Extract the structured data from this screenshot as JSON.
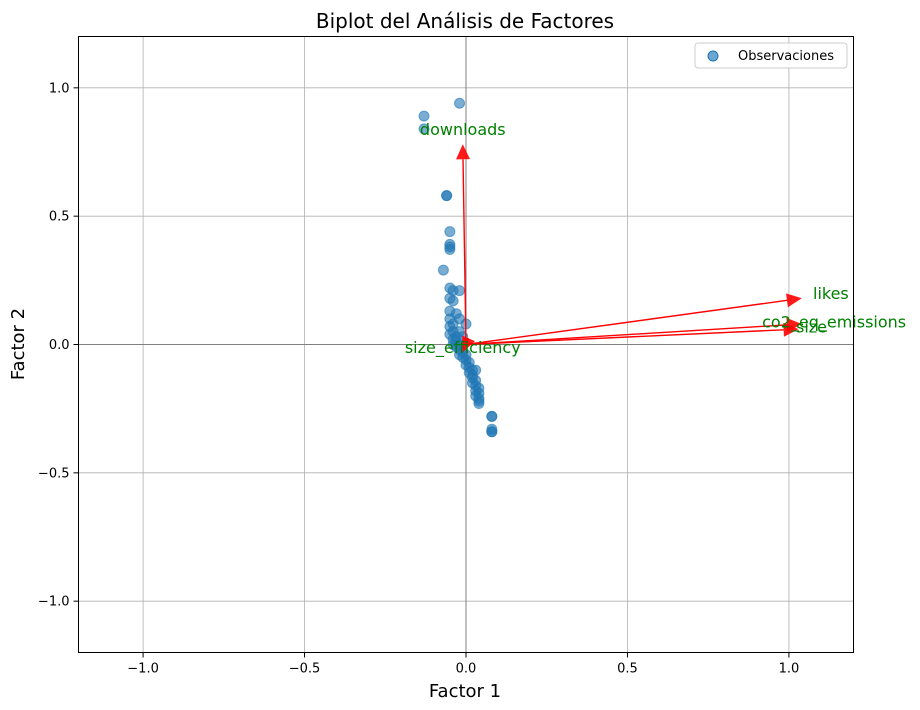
{
  "chart_data": {
    "type": "scatter",
    "title": "Biplot del Análisis de Factores",
    "xlabel": "Factor 1",
    "ylabel": "Factor 2",
    "xlim": [
      -1.2,
      1.2
    ],
    "ylim": [
      -1.2,
      1.2
    ],
    "xticks": [
      -1.0,
      -0.5,
      0.0,
      0.5,
      1.0
    ],
    "xtick_labels": [
      "−1.0",
      "−0.5",
      "0.0",
      "0.5",
      "1.0"
    ],
    "yticks": [
      -1.0,
      -0.5,
      0.0,
      0.5,
      1.0
    ],
    "ytick_labels": [
      "−1.0",
      "−0.5",
      "0.0",
      "0.5",
      "1.0"
    ],
    "grid": true,
    "legend": {
      "position": "upper-right",
      "entries": [
        "Observaciones"
      ]
    },
    "colors": {
      "points": "#1f77b4",
      "arrows": "#ff0000",
      "var_labels": "#008000"
    },
    "series": [
      {
        "name": "Observaciones",
        "points": [
          [
            -0.13,
            0.89
          ],
          [
            -0.02,
            0.94
          ],
          [
            -0.13,
            0.84
          ],
          [
            -0.06,
            0.58
          ],
          [
            -0.06,
            0.58
          ],
          [
            -0.05,
            0.44
          ],
          [
            -0.05,
            0.39
          ],
          [
            -0.05,
            0.38
          ],
          [
            -0.05,
            0.37
          ],
          [
            -0.07,
            0.29
          ],
          [
            -0.05,
            0.22
          ],
          [
            -0.04,
            0.21
          ],
          [
            -0.02,
            0.21
          ],
          [
            -0.05,
            0.18
          ],
          [
            -0.04,
            0.17
          ],
          [
            -0.05,
            0.13
          ],
          [
            -0.03,
            0.12
          ],
          [
            -0.02,
            0.1
          ],
          [
            -0.05,
            0.1
          ],
          [
            -0.04,
            0.08
          ],
          [
            0.0,
            0.08
          ],
          [
            -0.05,
            0.07
          ],
          [
            -0.04,
            0.05
          ],
          [
            -0.02,
            0.05
          ],
          [
            -0.05,
            0.04
          ],
          [
            -0.03,
            0.03
          ],
          [
            -0.01,
            0.03
          ],
          [
            -0.04,
            0.02
          ],
          [
            -0.03,
            0.01
          ],
          [
            -0.02,
            0.0
          ],
          [
            -0.04,
            0.0
          ],
          [
            -0.03,
            -0.01
          ],
          [
            -0.02,
            -0.02
          ],
          [
            -0.01,
            -0.03
          ],
          [
            -0.02,
            -0.04
          ],
          [
            0.0,
            -0.04
          ],
          [
            -0.01,
            -0.05
          ],
          [
            0.0,
            -0.06
          ],
          [
            0.01,
            -0.07
          ],
          [
            0.0,
            -0.08
          ],
          [
            0.01,
            -0.09
          ],
          [
            0.02,
            -0.1
          ],
          [
            0.03,
            -0.1
          ],
          [
            0.01,
            -0.11
          ],
          [
            0.02,
            -0.12
          ],
          [
            0.02,
            -0.13
          ],
          [
            0.03,
            -0.14
          ],
          [
            0.02,
            -0.15
          ],
          [
            0.03,
            -0.16
          ],
          [
            0.04,
            -0.17
          ],
          [
            0.03,
            -0.18
          ],
          [
            0.04,
            -0.19
          ],
          [
            0.03,
            -0.2
          ],
          [
            0.04,
            -0.21
          ],
          [
            0.04,
            -0.22
          ],
          [
            0.04,
            -0.23
          ],
          [
            0.08,
            -0.28
          ],
          [
            0.08,
            -0.28
          ],
          [
            0.08,
            -0.33
          ],
          [
            0.08,
            -0.34
          ],
          [
            0.08,
            -0.34
          ]
        ]
      }
    ],
    "loadings": [
      {
        "name": "downloads",
        "x": -0.01,
        "y": 0.78
      },
      {
        "name": "likes",
        "x": 1.04,
        "y": 0.18
      },
      {
        "name": "co2_eq_emissions",
        "x": 1.04,
        "y": 0.08
      },
      {
        "name": "size",
        "x": 1.03,
        "y": 0.06
      },
      {
        "name": "size_efficiency",
        "x": -0.01,
        "y": -0.03
      }
    ],
    "loading_labels": [
      {
        "text": "downloads",
        "x": -0.01,
        "y": 0.84
      },
      {
        "text": "likes",
        "x": 1.13,
        "y": 0.2
      },
      {
        "text": "co2_eq_emissions",
        "x": 1.14,
        "y": 0.09
      },
      {
        "text": "size",
        "x": 1.07,
        "y": 0.07
      },
      {
        "text": "size_efficiency",
        "x": -0.01,
        "y": -0.01
      }
    ]
  }
}
